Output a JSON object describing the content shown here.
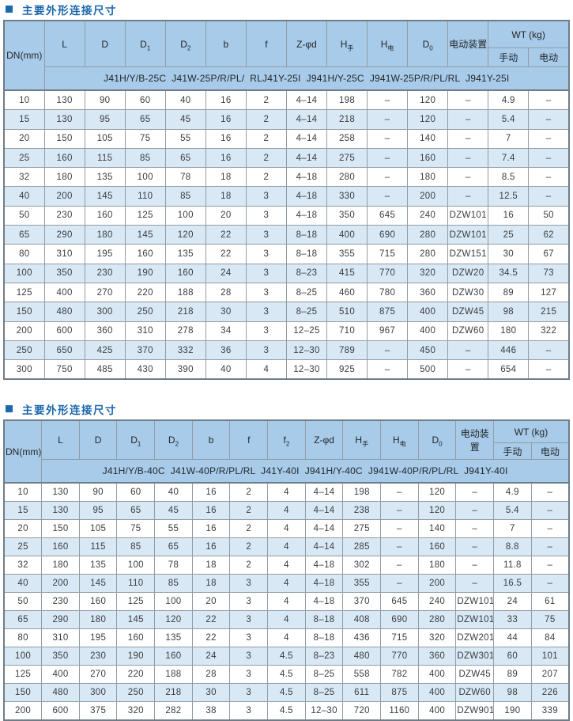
{
  "palette": {
    "title_blue": "#1a66ad",
    "bullet_blue": "#1a69b0",
    "header_bg": "#a7cbe9",
    "alt_row_bg": "#d8e8f5",
    "grid_line": "#929ca3",
    "outer_border": "#6f7d88",
    "cell_text": "#3a3e42"
  },
  "sections": [
    {
      "title": "主要外形连接尺寸",
      "dn_label": "DN(mm)",
      "wt_label": "WT (kg)",
      "wt_children": [
        "手动",
        "电动"
      ],
      "columns": [
        {
          "base": "L"
        },
        {
          "base": "D"
        },
        {
          "base": "D",
          "sub": "1"
        },
        {
          "base": "D",
          "sub": "2"
        },
        {
          "base": "b"
        },
        {
          "base": "f"
        },
        {
          "base": "Z-φd"
        },
        {
          "base": "H",
          "sub": "手"
        },
        {
          "base": "H",
          "sub": "电"
        },
        {
          "base": "D",
          "sub": "0"
        },
        {
          "base": "电动装置"
        }
      ],
      "models": "J41H/Y/B-25C  J41W-25P/R/PL/  RLJ41Y-25I  J941H/Y-25C  J941W-25P/R/PL/RL  J941Y-25I",
      "rows": [
        [
          "10",
          "130",
          "90",
          "60",
          "40",
          "16",
          "2",
          "4–14",
          "198",
          "–",
          "120",
          "–",
          "4.9",
          "–"
        ],
        [
          "15",
          "130",
          "95",
          "65",
          "45",
          "16",
          "2",
          "4–14",
          "218",
          "–",
          "120",
          "–",
          "5.4",
          "–"
        ],
        [
          "20",
          "150",
          "105",
          "75",
          "55",
          "16",
          "2",
          "4–14",
          "258",
          "–",
          "140",
          "–",
          "7",
          "–"
        ],
        [
          "25",
          "160",
          "115",
          "85",
          "65",
          "16",
          "2",
          "4–14",
          "275",
          "–",
          "160",
          "–",
          "7.4",
          "–"
        ],
        [
          "32",
          "180",
          "135",
          "100",
          "78",
          "18",
          "2",
          "4–18",
          "280",
          "–",
          "180",
          "–",
          "8.5",
          "–"
        ],
        [
          "40",
          "200",
          "145",
          "110",
          "85",
          "18",
          "3",
          "4–18",
          "330",
          "–",
          "200",
          "–",
          "12.5",
          "–"
        ],
        [
          "50",
          "230",
          "160",
          "125",
          "100",
          "20",
          "3",
          "4–18",
          "350",
          "645",
          "240",
          "DZW101",
          "16",
          "50"
        ],
        [
          "65",
          "290",
          "180",
          "145",
          "120",
          "22",
          "3",
          "8–18",
          "400",
          "690",
          "280",
          "DZW101",
          "25",
          "62"
        ],
        [
          "80",
          "310",
          "195",
          "160",
          "135",
          "22",
          "3",
          "8–18",
          "355",
          "715",
          "280",
          "DZW151",
          "30",
          "67"
        ],
        [
          "100",
          "350",
          "230",
          "190",
          "160",
          "24",
          "3",
          "8–23",
          "415",
          "770",
          "320",
          "DZW20",
          "34.5",
          "73"
        ],
        [
          "125",
          "400",
          "270",
          "220",
          "188",
          "28",
          "3",
          "8–25",
          "460",
          "780",
          "360",
          "DZW30",
          "89",
          "127"
        ],
        [
          "150",
          "480",
          "300",
          "250",
          "218",
          "30",
          "3",
          "8–25",
          "510",
          "875",
          "400",
          "DZW45",
          "98",
          "215"
        ],
        [
          "200",
          "600",
          "360",
          "310",
          "278",
          "34",
          "3",
          "12–25",
          "710",
          "967",
          "400",
          "DZW60",
          "180",
          "322"
        ],
        [
          "250",
          "650",
          "425",
          "370",
          "332",
          "36",
          "3",
          "12–30",
          "789",
          "–",
          "450",
          "–",
          "446",
          "–"
        ],
        [
          "300",
          "750",
          "485",
          "430",
          "390",
          "40",
          "4",
          "12–30",
          "925",
          "–",
          "500",
          "–",
          "654",
          "–"
        ]
      ]
    },
    {
      "title": "主要外形连接尺寸",
      "dn_label": "DN(mm)",
      "wt_label": "WT (kg)",
      "wt_children": [
        "手动",
        "电动"
      ],
      "columns": [
        {
          "base": "L"
        },
        {
          "base": "D"
        },
        {
          "base": "D",
          "sub": "1"
        },
        {
          "base": "D",
          "sub": "2"
        },
        {
          "base": "b"
        },
        {
          "base": "f"
        },
        {
          "base": "f",
          "sub": "2"
        },
        {
          "base": "Z-φd"
        },
        {
          "base": "H",
          "sub": "手"
        },
        {
          "base": "H",
          "sub": "电"
        },
        {
          "base": "D",
          "sub": "0"
        },
        {
          "base": "电动装置"
        }
      ],
      "models": "J41H/Y/B-40C  J41W-40P/R/PL/RL  J41Y-40I  J941H/Y-40C  J941W-40P/R/PL/RL  J941Y-40I",
      "rows": [
        [
          "10",
          "130",
          "90",
          "60",
          "40",
          "16",
          "2",
          "4",
          "4–14",
          "198",
          "–",
          "120",
          "–",
          "4.9",
          "–"
        ],
        [
          "15",
          "130",
          "95",
          "65",
          "45",
          "16",
          "2",
          "4",
          "4–14",
          "238",
          "–",
          "120",
          "–",
          "5.4",
          "–"
        ],
        [
          "20",
          "150",
          "105",
          "75",
          "55",
          "16",
          "2",
          "4",
          "4–14",
          "275",
          "–",
          "140",
          "–",
          "7",
          "–"
        ],
        [
          "25",
          "160",
          "115",
          "85",
          "65",
          "16",
          "2",
          "4",
          "4–14",
          "285",
          "–",
          "160",
          "–",
          "8.8",
          "–"
        ],
        [
          "32",
          "180",
          "135",
          "100",
          "78",
          "18",
          "2",
          "4",
          "4–18",
          "302",
          "–",
          "180",
          "–",
          "11.8",
          "–"
        ],
        [
          "40",
          "200",
          "145",
          "110",
          "85",
          "18",
          "3",
          "4",
          "4–18",
          "355",
          "–",
          "200",
          "–",
          "16.5",
          "–"
        ],
        [
          "50",
          "230",
          "160",
          "125",
          "100",
          "20",
          "3",
          "4",
          "4–18",
          "370",
          "645",
          "240",
          "DZW101",
          "24",
          "61"
        ],
        [
          "65",
          "290",
          "180",
          "145",
          "120",
          "22",
          "3",
          "4",
          "8–18",
          "408",
          "690",
          "280",
          "DZW101",
          "33",
          "75"
        ],
        [
          "80",
          "310",
          "195",
          "160",
          "135",
          "22",
          "3",
          "4",
          "8–18",
          "436",
          "715",
          "320",
          "DZW201",
          "44",
          "84"
        ],
        [
          "100",
          "350",
          "230",
          "190",
          "160",
          "24",
          "3",
          "4.5",
          "8–23",
          "480",
          "770",
          "360",
          "DZW301",
          "60",
          "101"
        ],
        [
          "125",
          "400",
          "270",
          "220",
          "188",
          "28",
          "3",
          "4.5",
          "8–25",
          "558",
          "782",
          "400",
          "DZW45",
          "89",
          "207"
        ],
        [
          "150",
          "480",
          "300",
          "250",
          "218",
          "30",
          "3",
          "4.5",
          "8–25",
          "611",
          "875",
          "400",
          "DZW60",
          "98",
          "226"
        ],
        [
          "200",
          "600",
          "375",
          "320",
          "282",
          "38",
          "3",
          "4.5",
          "12–30",
          "720",
          "1160",
          "400",
          "DZW901",
          "190",
          "339"
        ]
      ]
    }
  ]
}
